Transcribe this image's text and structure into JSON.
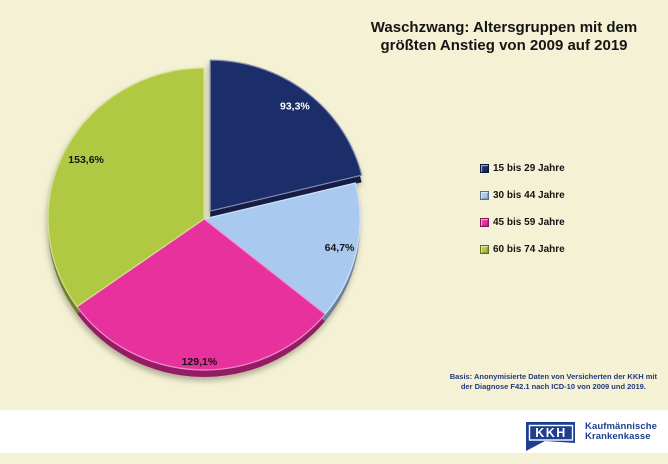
{
  "title": {
    "line1": "Waschzwang: Altersgruppen mit dem",
    "line2": "größten Anstieg von 2009 auf 2019"
  },
  "chart_data": {
    "type": "pie",
    "title": "Waschzwang: Altersgruppen mit dem größten Anstieg von 2009 auf 2019",
    "unit": "%",
    "categories": [
      "15 bis 29 Jahre",
      "30 bis 44 Jahre",
      "45 bis 59 Jahre",
      "60 bis 74 Jahre"
    ],
    "values": [
      93.3,
      64.7,
      129.1,
      153.6
    ],
    "value_labels": [
      "93,3%",
      "64,7%",
      "129,1%",
      "153,6%"
    ],
    "colors": [
      "#1e2d6b",
      "#a9c9f1",
      "#e7309e",
      "#b0c843"
    ],
    "exploded_index": 0,
    "start_angle_deg": 0,
    "direction": "clockwise",
    "legend_position": "right"
  },
  "legend": {
    "items": [
      {
        "label": "15 bis 29 Jahre",
        "color": "#1e2d6b"
      },
      {
        "label": "30 bis 44 Jahre",
        "color": "#a9c9f1"
      },
      {
        "label": "45 bis 59 Jahre",
        "color": "#e7309e"
      },
      {
        "label": "60 bis 74 Jahre",
        "color": "#b0c843"
      }
    ]
  },
  "footnote": {
    "line1": "Basis: Anonymisierte Daten von Versicherten der KKH mit",
    "line2": "der Diagnose F42.1 nach ICD-10 von 2009 und 2019."
  },
  "logo": {
    "abbr": "KKH",
    "company_line1": "Kaufmännische",
    "company_line2": "Krankenkasse"
  },
  "colors": {
    "background": "#f4f1d5",
    "footer_bar": "#ffffff",
    "title_text": "#151515",
    "footnote_text": "#21397e",
    "logo_blue": "#1e3f8f"
  }
}
